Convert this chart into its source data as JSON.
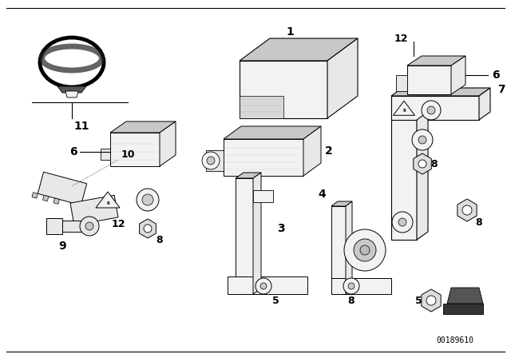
{
  "background_color": "#ffffff",
  "diagram_id": "00189610",
  "line_color": "#000000",
  "text_color": "#000000",
  "gray_fill": "#e8e8e8",
  "dark_gray": "#c8c8c8",
  "light_gray": "#f2f2f2"
}
